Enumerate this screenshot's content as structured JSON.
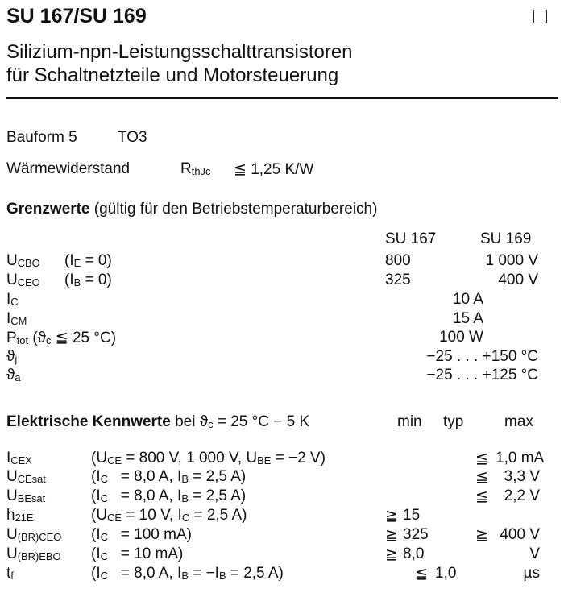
{
  "header": {
    "title": "SU 167/SU 169",
    "subtitle_line1": "Silizium-npn-Leistungsschalttransistoren",
    "subtitle_line2": "für Schaltnetzteile und Motorsteuerung"
  },
  "package": {
    "label": "Bauform 5",
    "value": "TO3"
  },
  "thermal": {
    "label": "Wärmewiderstand",
    "symbol": "R",
    "symbol_sub": "thJc",
    "value": "≦ 1,25 K/W"
  },
  "limits": {
    "heading": "Grenzwerte",
    "heading_note": "(gültig für den Betriebstemperaturbereich)",
    "col_su167": "SU 167",
    "col_su169": "SU 169",
    "rows": [
      {
        "label": [
          {
            "text": "U"
          },
          {
            "text": "CBO",
            "sub": true
          }
        ],
        "cond": [
          {
            "text": "(I"
          },
          {
            "text": "E",
            "sub": true
          },
          {
            "text": " = 0)"
          }
        ],
        "v167": "800",
        "v169": "1 000 V"
      },
      {
        "label": [
          {
            "text": "U"
          },
          {
            "text": "CEO",
            "sub": true
          }
        ],
        "cond": [
          {
            "text": "(I"
          },
          {
            "text": "B",
            "sub": true
          },
          {
            "text": " = 0)"
          }
        ],
        "v167": "325",
        "v169": "400 V"
      },
      {
        "label": [
          {
            "text": "I"
          },
          {
            "text": "C",
            "sub": true
          }
        ],
        "cond": [],
        "shared": "10 A"
      },
      {
        "label": [
          {
            "text": "I"
          },
          {
            "text": "CM",
            "sub": true
          }
        ],
        "cond": [],
        "shared": "15 A"
      },
      {
        "label": [
          {
            "text": "P"
          },
          {
            "text": "tot",
            "sub": true
          },
          {
            "text": " (ϑ"
          },
          {
            "text": "c",
            "sub": true
          },
          {
            "text": " ≦ 25 °C)"
          }
        ],
        "cond": [],
        "shared": "100 W"
      },
      {
        "label": [
          {
            "text": "ϑ"
          },
          {
            "text": "j",
            "sub": true
          }
        ],
        "cond": [],
        "shared": "−25 . . . +150 °C"
      },
      {
        "label": [
          {
            "text": "ϑ"
          },
          {
            "text": "a",
            "sub": true
          }
        ],
        "cond": [],
        "shared": "−25 . . . +125 °C"
      }
    ]
  },
  "electrical": {
    "heading": "Elektrische Kennwerte",
    "heading_note": "bei ϑ",
    "heading_note_sub": "c",
    "heading_note_rest": " = 25 °C − 5 K",
    "col_min": "min",
    "col_typ": "typ",
    "col_max": "max",
    "rows": [
      {
        "label": [
          {
            "text": "I"
          },
          {
            "text": "CEX",
            "sub": true
          }
        ],
        "cond": [
          {
            "text": "(U"
          },
          {
            "text": "CE",
            "sub": true
          },
          {
            "text": " = 800 V, 1 000 V, U"
          },
          {
            "text": "BE",
            "sub": true
          },
          {
            "text": " = −2 V)"
          }
        ],
        "min_sym": "",
        "min": "",
        "typ_sym": "",
        "typ": "",
        "max_sym": "≦",
        "max": "1,0 mA"
      },
      {
        "label": [
          {
            "text": "U"
          },
          {
            "text": "CEsat",
            "sub": true
          }
        ],
        "cond": [
          {
            "text": "(I"
          },
          {
            "text": "C",
            "sub": true
          },
          {
            "text": "   = 8,0 A, I"
          },
          {
            "text": "B",
            "sub": true
          },
          {
            "text": " = 2,5 A)"
          }
        ],
        "min_sym": "",
        "min": "",
        "typ_sym": "",
        "typ": "",
        "max_sym": "≦",
        "max": "3,3 V"
      },
      {
        "label": [
          {
            "text": "U"
          },
          {
            "text": "BEsat",
            "sub": true
          }
        ],
        "cond": [
          {
            "text": "(I"
          },
          {
            "text": "C",
            "sub": true
          },
          {
            "text": "   = 8,0 A, I"
          },
          {
            "text": "B",
            "sub": true
          },
          {
            "text": " = 2,5 A)"
          }
        ],
        "min_sym": "",
        "min": "",
        "typ_sym": "",
        "typ": "",
        "max_sym": "≦",
        "max": "2,2 V"
      },
      {
        "label": [
          {
            "text": "h"
          },
          {
            "text": "21E",
            "sub": true
          }
        ],
        "cond": [
          {
            "text": "(U"
          },
          {
            "text": "CE",
            "sub": true
          },
          {
            "text": " = 10 V, I"
          },
          {
            "text": "C",
            "sub": true
          },
          {
            "text": " = 2,5 A)"
          }
        ],
        "min_sym": "≧",
        "min": "15",
        "typ_sym": "",
        "typ": "",
        "max_sym": "",
        "max": ""
      },
      {
        "label": [
          {
            "text": "U"
          },
          {
            "text": "(BR)CEO",
            "sub": true
          }
        ],
        "cond": [
          {
            "text": "(I"
          },
          {
            "text": "C",
            "sub": true
          },
          {
            "text": "   = 100 mA)"
          }
        ],
        "min_sym": "≧",
        "min": "325",
        "typ_sym": "",
        "typ": "",
        "max_sym": "≧",
        "max": "400 V"
      },
      {
        "label": [
          {
            "text": "U"
          },
          {
            "text": "(BR)EBO",
            "sub": true
          }
        ],
        "cond": [
          {
            "text": "(I"
          },
          {
            "text": "C",
            "sub": true
          },
          {
            "text": "   = 10 mA)"
          }
        ],
        "min_sym": "≧",
        "min": "8,0",
        "typ_sym": "",
        "typ": "",
        "max_sym": "",
        "max": "V"
      },
      {
        "label": [
          {
            "text": "t"
          },
          {
            "text": "f",
            "sub": true
          }
        ],
        "cond": [
          {
            "text": "(I"
          },
          {
            "text": "C",
            "sub": true
          },
          {
            "text": "   = 8,0 A, I"
          },
          {
            "text": "B",
            "sub": true
          },
          {
            "text": " = −I"
          },
          {
            "text": "B",
            "sub": true
          },
          {
            "text": " = 2,5 A)"
          }
        ],
        "min_sym": "",
        "min": "",
        "typ_sym": "≦",
        "typ": "1,0",
        "max_sym": "",
        "max": "µs"
      }
    ]
  }
}
